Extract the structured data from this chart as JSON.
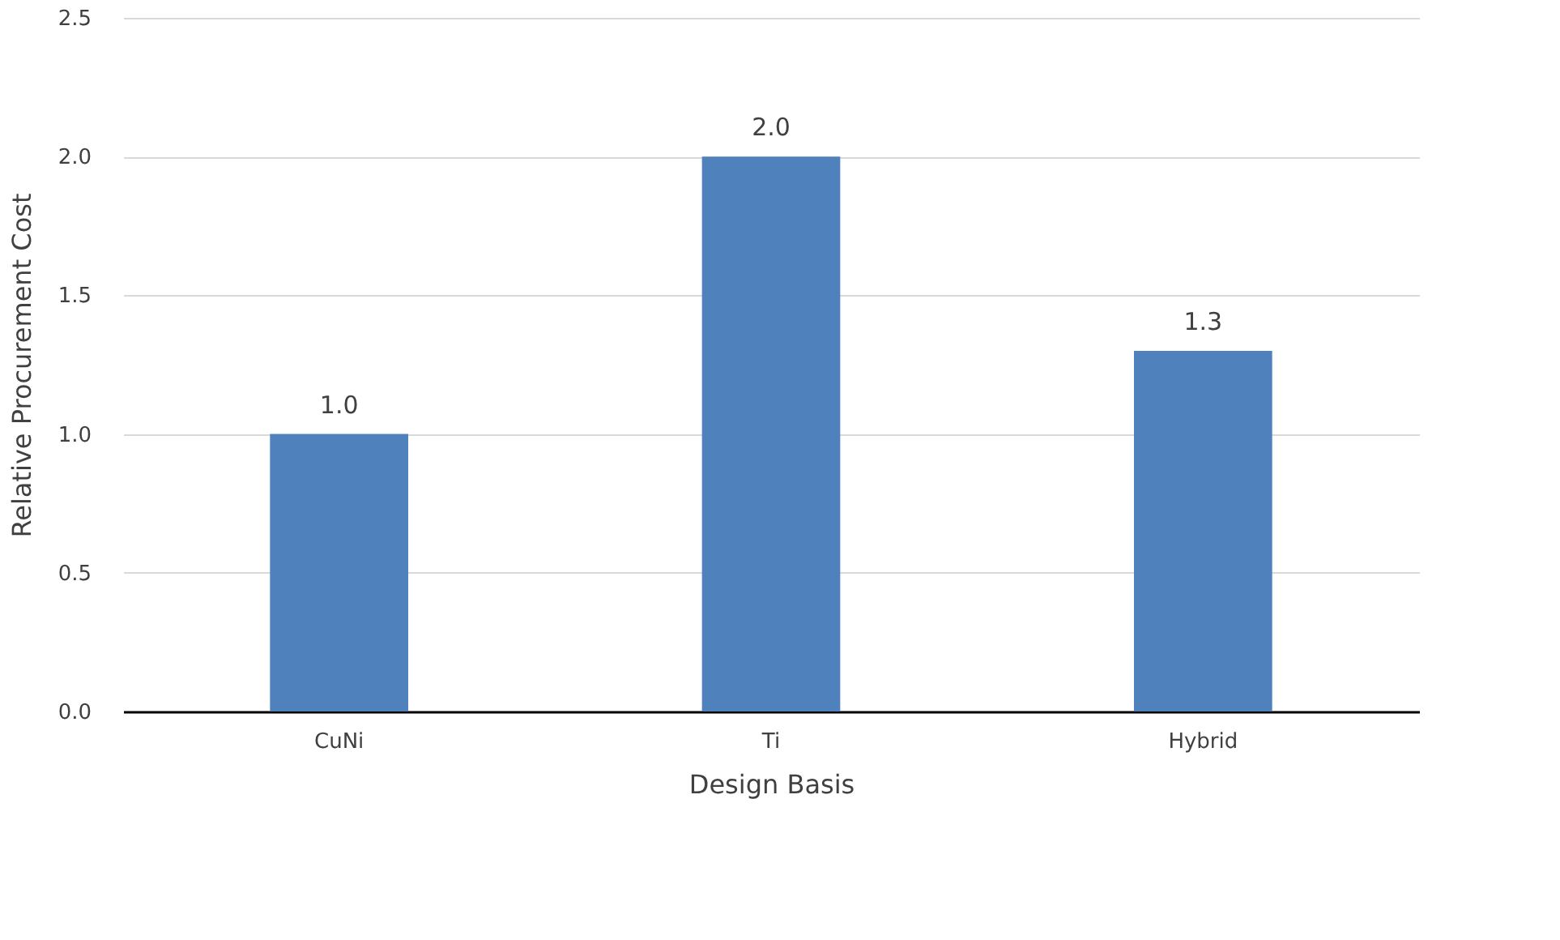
{
  "chart_data": {
    "type": "bar",
    "xlabel": "Design Basis",
    "ylabel": "Relative Procurement Cost",
    "categories": [
      "CuNi",
      "Ti",
      "Hybrid"
    ],
    "values": [
      1.0,
      2.0,
      1.3
    ],
    "color": "#4f81bd",
    "value_labels": [
      "1.0",
      "2.0",
      "1.3"
    ],
    "ylim": [
      0,
      2.5
    ],
    "yticks": [
      {
        "value": 0,
        "label": "0.0"
      },
      0.5,
      {
        "value": 1,
        "label": "1.0"
      },
      1.5,
      {
        "value": 2,
        "label": "2.0"
      },
      2.5
    ],
    "grid": "y"
  }
}
